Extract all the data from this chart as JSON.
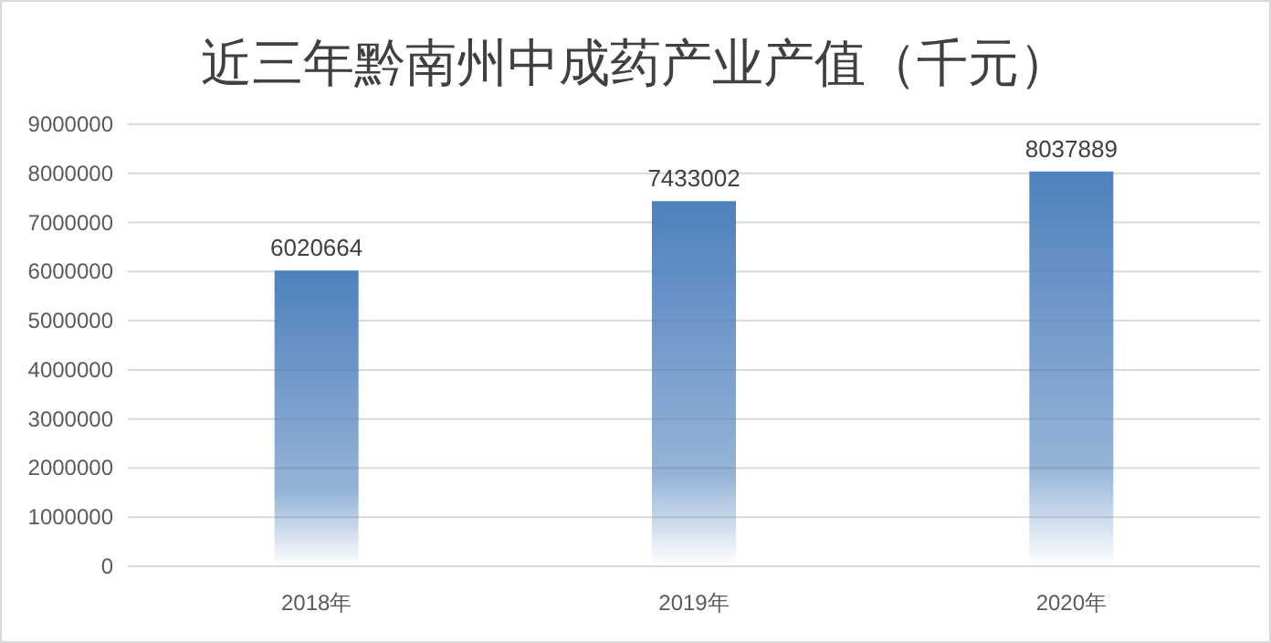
{
  "chart_data": {
    "type": "bar",
    "title": "近三年黔南州中成药产业产值（千元）",
    "categories": [
      "2018年",
      "2019年",
      "2020年"
    ],
    "values": [
      6020664,
      7433002,
      8037889
    ],
    "color": "#4f81bd",
    "ylim": [
      0,
      9000000
    ],
    "yticks": [
      0,
      1000000,
      2000000,
      3000000,
      4000000,
      5000000,
      6000000,
      7000000,
      8000000,
      9000000
    ],
    "grid": "y",
    "data_labels": true
  }
}
